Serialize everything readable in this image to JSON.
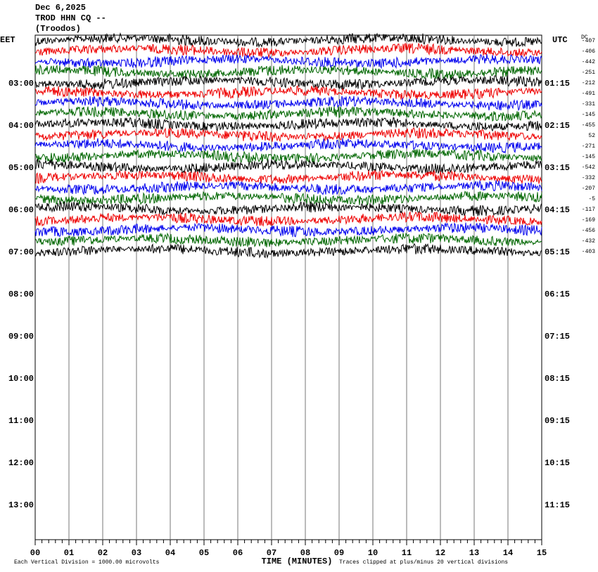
{
  "header": {
    "date": "Dec 6,2025",
    "station": "TROD HHN CQ --",
    "location": "(Troodos)"
  },
  "left_axis": {
    "title": "EET",
    "labels": [
      "03:00",
      "04:00",
      "05:00",
      "06:00",
      "07:00",
      "08:00",
      "09:00",
      "10:00",
      "11:00",
      "12:00",
      "13:00"
    ]
  },
  "right_axis": {
    "title": "UTC",
    "labels": [
      "01:15",
      "02:15",
      "03:15",
      "04:15",
      "05:15",
      "06:15",
      "07:15",
      "08:15",
      "09:15",
      "10:15",
      "11:15"
    ]
  },
  "dc_offsets": {
    "title": "DC",
    "values": [
      "-407",
      "-406",
      "-442",
      "-251",
      "-212",
      "-491",
      "-331",
      "-145",
      "-455",
      "52",
      "-271",
      "-145",
      "-542",
      "-332",
      "-207",
      "-5",
      "-117",
      "-169",
      "-456",
      "-432",
      "-403"
    ]
  },
  "x_axis": {
    "title": "TIME (MINUTES)",
    "labels": [
      "00",
      "01",
      "02",
      "03",
      "04",
      "05",
      "06",
      "07",
      "08",
      "09",
      "10",
      "11",
      "12",
      "13",
      "14",
      "15"
    ]
  },
  "footer": {
    "scale_note": "Each Vertical Division = 1000.00 microvolts",
    "clip_note": "Traces clipped at plus/minus 20 vertical divisions"
  }
}
